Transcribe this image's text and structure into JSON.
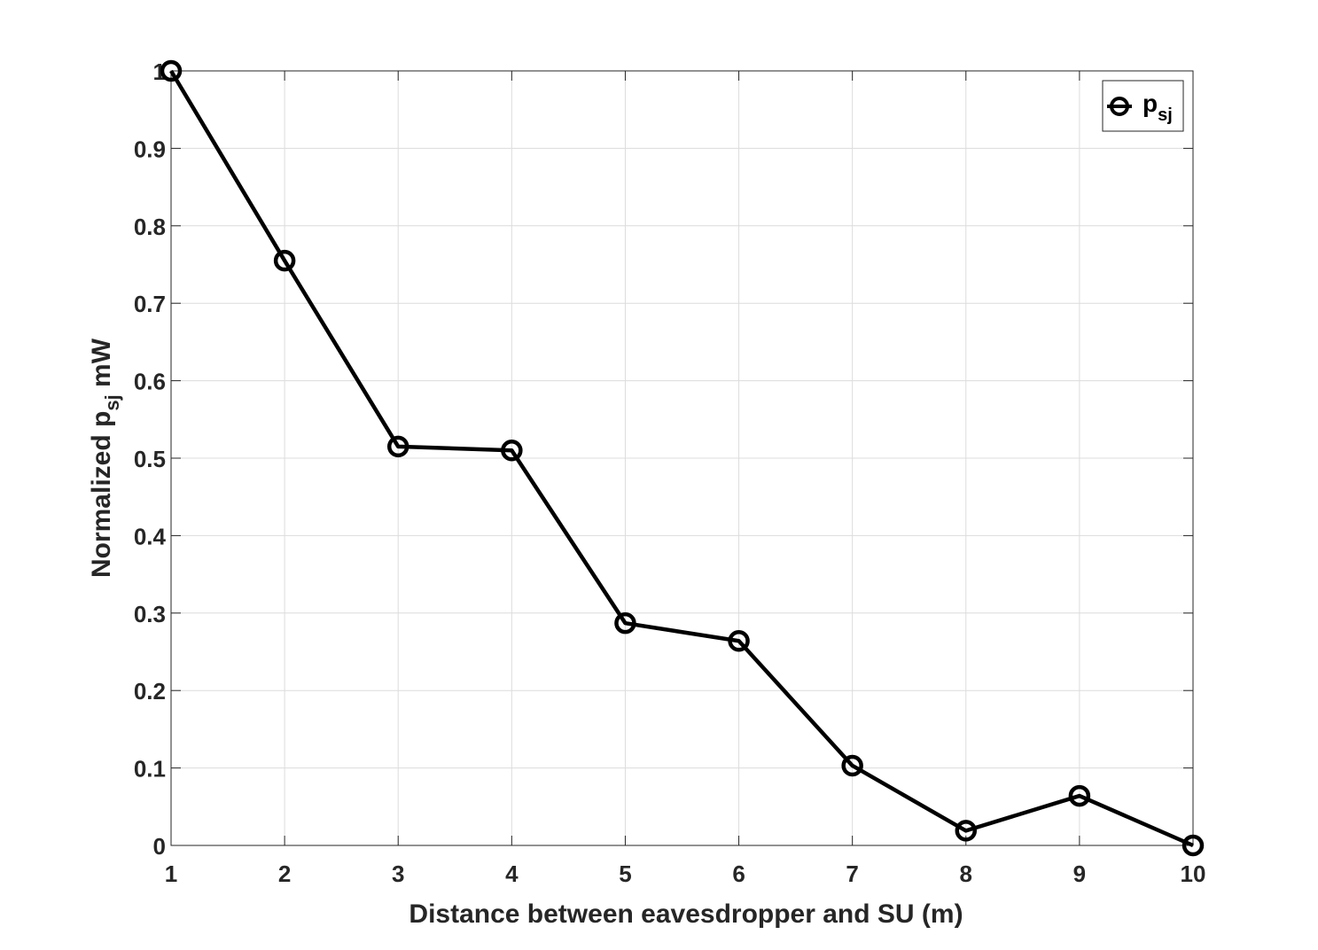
{
  "chart_data": {
    "type": "line",
    "x": [
      1,
      2,
      3,
      4,
      5,
      6,
      7,
      8,
      9,
      10
    ],
    "series": [
      {
        "name": "p_sj",
        "values": [
          1.0,
          0.755,
          0.515,
          0.51,
          0.287,
          0.264,
          0.103,
          0.019,
          0.064,
          0.0
        ],
        "color": "#000000",
        "marker": "circle"
      }
    ],
    "xlabel": "Distance between eavesdropper and SU (m)",
    "ylabel_prefix": "Normalized p",
    "ylabel_subscript": "sj",
    "ylabel_suffix": " mW",
    "legend_main": "p",
    "legend_subscript": "sj",
    "xlim": [
      1,
      10
    ],
    "ylim": [
      0,
      1
    ],
    "xticks": [
      1,
      2,
      3,
      4,
      5,
      6,
      7,
      8,
      9,
      10
    ],
    "yticks": [
      0,
      0.1,
      0.2,
      0.3,
      0.4,
      0.5,
      0.6,
      0.7,
      0.8,
      0.9,
      1
    ],
    "xtick_labels": [
      "1",
      "2",
      "3",
      "4",
      "5",
      "6",
      "7",
      "8",
      "9",
      "10"
    ],
    "ytick_labels": [
      "0",
      "0.1",
      "0.2",
      "0.3",
      "0.4",
      "0.5",
      "0.6",
      "0.7",
      "0.8",
      "0.9",
      "1"
    ],
    "grid": true,
    "legend_position": "top-right"
  }
}
